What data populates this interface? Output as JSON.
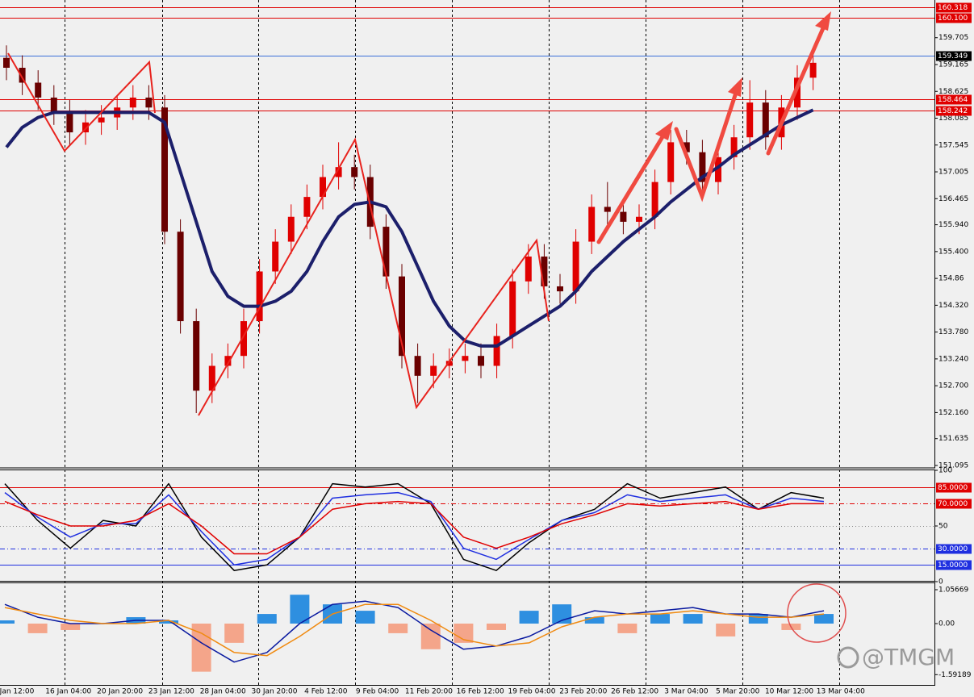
{
  "chart_data": [
    {
      "type": "candlestick",
      "open": [
        159.3,
        159.1,
        158.8,
        158.5,
        158.2,
        157.8,
        158.0,
        158.1,
        158.3,
        158.5,
        158.3,
        155.8,
        154.0,
        152.6,
        153.1,
        153.3,
        154.0,
        155.0,
        155.6,
        156.1,
        156.5,
        156.9,
        157.1,
        156.9,
        155.9,
        154.9,
        153.3,
        152.9,
        153.1,
        153.2,
        153.3,
        153.1,
        153.7,
        154.8,
        155.3,
        154.7,
        154.6,
        155.6,
        156.3,
        156.2,
        156.0,
        156.1,
        156.8,
        157.6,
        157.4,
        156.8,
        157.3,
        157.7,
        158.4,
        157.7,
        158.3,
        158.9
      ],
      "high": [
        159.55,
        159.35,
        159.05,
        158.75,
        158.45,
        158.25,
        158.35,
        158.55,
        158.75,
        158.75,
        158.55,
        156.05,
        154.25,
        153.35,
        153.55,
        154.25,
        155.25,
        155.85,
        156.35,
        156.75,
        157.15,
        157.6,
        157.35,
        157.15,
        156.15,
        155.15,
        153.55,
        153.35,
        153.45,
        153.55,
        153.55,
        153.95,
        155.05,
        155.55,
        155.55,
        154.95,
        155.85,
        156.55,
        156.8,
        156.45,
        156.35,
        157.05,
        157.85,
        157.85,
        157.65,
        157.55,
        157.95,
        158.85,
        158.65,
        158.55,
        159.15,
        159.45
      ],
      "low": [
        158.85,
        158.55,
        158.25,
        157.95,
        157.55,
        157.55,
        157.75,
        157.85,
        158.05,
        158.05,
        155.55,
        153.75,
        152.15,
        152.35,
        152.85,
        153.05,
        153.75,
        154.75,
        155.35,
        155.85,
        156.25,
        156.65,
        156.65,
        155.65,
        154.65,
        153.05,
        152.35,
        152.65,
        152.85,
        152.95,
        152.85,
        152.85,
        153.45,
        154.55,
        154.45,
        154.35,
        154.35,
        155.35,
        155.95,
        155.75,
        155.75,
        155.85,
        156.55,
        157.15,
        156.55,
        156.55,
        157.05,
        157.45,
        157.45,
        157.45,
        158.05,
        158.65
      ],
      "close": [
        159.1,
        158.8,
        158.5,
        158.2,
        157.8,
        158.0,
        158.1,
        158.3,
        158.5,
        158.3,
        155.8,
        154.0,
        152.6,
        153.1,
        153.3,
        154.0,
        155.0,
        155.6,
        156.1,
        156.5,
        156.9,
        157.1,
        156.9,
        155.9,
        154.9,
        153.3,
        152.9,
        153.1,
        153.2,
        153.3,
        153.1,
        153.7,
        154.8,
        155.3,
        154.7,
        154.6,
        155.6,
        156.3,
        156.2,
        156.0,
        156.1,
        156.8,
        157.6,
        157.4,
        156.8,
        157.3,
        157.7,
        158.4,
        157.7,
        158.3,
        158.9,
        159.2
      ],
      "up_color": "#e00000",
      "down_color": "#6a0000",
      "series": [
        {
          "color": "#1c1f6b",
          "values": [
            157.5,
            157.9,
            158.1,
            158.2,
            158.2,
            158.2,
            158.2,
            158.2,
            158.2,
            158.2,
            158.0,
            157.0,
            156.0,
            155.0,
            154.5,
            154.3,
            154.3,
            154.4,
            154.6,
            155.0,
            155.6,
            156.1,
            156.35,
            156.4,
            156.3,
            155.8,
            155.1,
            154.4,
            153.9,
            153.6,
            153.5,
            153.5,
            153.7,
            153.9,
            154.1,
            154.3,
            154.6,
            155.0,
            155.3,
            155.6,
            155.85,
            156.1,
            156.4,
            156.65,
            156.9,
            157.1,
            157.35,
            157.55,
            157.75,
            157.95,
            158.1,
            158.25
          ]
        }
      ],
      "ylim": [
        151.046,
        160.464
      ],
      "yticks": [
        159.705,
        159.165,
        158.625,
        158.085,
        157.545,
        157.005,
        156.465,
        {
          "value": 155.94,
          "label": "155.940"
        },
        {
          "value": 155.4,
          "label": "155.400"
        },
        154.86,
        {
          "value": 154.32,
          "label": "154.320"
        },
        {
          "value": 153.78,
          "label": "153.780"
        },
        {
          "value": 153.24,
          "label": "153.240"
        },
        {
          "value": 152.7,
          "label": "152.700"
        },
        {
          "value": 152.16,
          "label": "152.160"
        },
        151.635,
        151.095
      ],
      "levels": [
        {
          "value": 160.318,
          "color": "#e00000",
          "label_color": "#e00000"
        },
        {
          "value": 160.1,
          "label": "160.100",
          "color": "#e00000",
          "label_color": "#e00000"
        },
        {
          "value": 159.349,
          "color": "#3b6fd8",
          "label_color": "#000000"
        },
        {
          "value": 158.464,
          "color": "#e00000",
          "label_color": "#e00000"
        },
        {
          "value": 158.242,
          "color": "#e00000",
          "label_color": "#e00000"
        }
      ]
    },
    {
      "type": "line",
      "series": [
        {
          "color": "#000000",
          "values": [
            88,
            55,
            30,
            55,
            50,
            88,
            40,
            10,
            15,
            40,
            88,
            85,
            88,
            70,
            20,
            10,
            35,
            55,
            65,
            88,
            75,
            80,
            85,
            65,
            80,
            75
          ]
        },
        {
          "color": "#1f2fe0",
          "values": [
            80,
            58,
            40,
            52,
            52,
            78,
            45,
            15,
            20,
            40,
            75,
            78,
            80,
            72,
            30,
            20,
            38,
            55,
            62,
            78,
            72,
            75,
            78,
            65,
            75,
            72
          ]
        },
        {
          "color": "#e00000",
          "values": [
            72,
            60,
            50,
            50,
            55,
            70,
            50,
            25,
            25,
            40,
            65,
            70,
            72,
            70,
            40,
            30,
            40,
            52,
            60,
            70,
            68,
            70,
            72,
            65,
            70,
            70
          ]
        }
      ],
      "ylim": [
        0,
        100
      ],
      "yticks": [
        100,
        50,
        0
      ],
      "levels": [
        {
          "value": 85,
          "label": "85.0000",
          "color": "#e00000",
          "label_color": "#e00000",
          "dash": "solid"
        },
        {
          "value": 70,
          "label": "70.0000",
          "color": "#e00000",
          "label_color": "#e00000",
          "dash": "dashdot"
        },
        {
          "value": 50,
          "color": "#888888",
          "dash": "dot"
        },
        {
          "value": 30,
          "label": "30.0000",
          "color": "#1f2fe0",
          "label_color": "#1f2fe0",
          "dash": "dashdot"
        },
        {
          "value": 15,
          "label": "15.0000",
          "color": "#1f2fe0",
          "label_color": "#1f2fe0",
          "dash": "solid"
        }
      ]
    },
    {
      "type": "macd",
      "values": [
        0.1,
        -0.3,
        -0.2,
        0.0,
        0.2,
        0.1,
        -1.5,
        -0.6,
        0.3,
        0.9,
        0.6,
        0.4,
        -0.3,
        -0.8,
        -0.6,
        -0.2,
        0.4,
        0.6,
        0.2,
        -0.3,
        0.3,
        0.3,
        -0.4,
        0.3,
        -0.2,
        0.3
      ],
      "positive_color": "#2e8fe0",
      "negative_color": "#f4a58a",
      "series": [
        {
          "color": "#0a1aa0",
          "values": [
            0.6,
            0.2,
            0.0,
            0.0,
            0.1,
            0.1,
            -0.6,
            -1.2,
            -0.9,
            0.0,
            0.6,
            0.7,
            0.5,
            -0.2,
            -0.8,
            -0.7,
            -0.4,
            0.1,
            0.4,
            0.3,
            0.4,
            0.5,
            0.3,
            0.3,
            0.2,
            0.4
          ]
        },
        {
          "color": "#f08a10",
          "values": [
            0.5,
            0.3,
            0.1,
            0.0,
            0.0,
            0.1,
            -0.3,
            -0.9,
            -1.0,
            -0.4,
            0.3,
            0.6,
            0.6,
            0.1,
            -0.5,
            -0.7,
            -0.6,
            -0.1,
            0.2,
            0.3,
            0.3,
            0.4,
            0.3,
            0.2,
            0.2,
            0.3
          ]
        }
      ],
      "ylim": [
        -1.937,
        1.258
      ],
      "yticks": [
        1.05669,
        {
          "value": 0,
          "label": "0.00"
        },
        -1.59189
      ]
    }
  ],
  "time_labels": [
    "Jan 12:00",
    "16 Jan 04:00",
    "20 Jan 20:00",
    "23 Jan 12:00",
    "28 Jan 04:00",
    "30 Jan 20:00",
    "4 Feb 12:00",
    "9 Feb 04:00",
    "11 Feb 20:00",
    "16 Feb 12:00",
    "19 Feb 04:00",
    "23 Feb 20:00",
    "26 Feb 12:00",
    "3 Mar 04:00",
    "5 Mar 20:00",
    "10 Mar 12:00",
    "13 Mar 04:00"
  ],
  "watermark": "@TMGM"
}
